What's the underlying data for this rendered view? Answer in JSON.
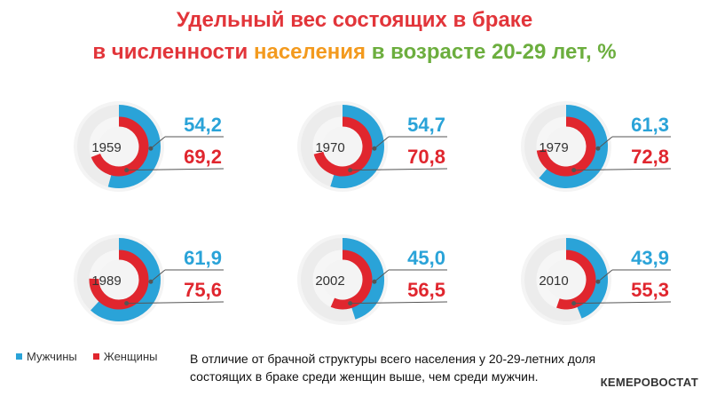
{
  "title": {
    "line1": [
      {
        "text": "Удельный вес состоящих в браке",
        "color": "#e2353a"
      }
    ],
    "line2": [
      {
        "text": "в численности ",
        "color": "#e2353a"
      },
      {
        "text": "населения ",
        "color": "#f39a1e"
      },
      {
        "text": "в возрасте 20-29 лет, %",
        "color": "#6cae3e"
      }
    ]
  },
  "chart_data": [
    {
      "type": "donut",
      "year": "1959",
      "series": [
        {
          "name": "Мужчины",
          "values": [
            54.2
          ]
        },
        {
          "name": "Женщины",
          "values": [
            69.2
          ]
        }
      ]
    },
    {
      "type": "donut",
      "year": "1970",
      "series": [
        {
          "name": "Мужчины",
          "values": [
            54.7
          ]
        },
        {
          "name": "Женщины",
          "values": [
            70.8
          ]
        }
      ]
    },
    {
      "type": "donut",
      "year": "1979",
      "series": [
        {
          "name": "Мужчины",
          "values": [
            61.3
          ]
        },
        {
          "name": "Женщины",
          "values": [
            72.8
          ]
        }
      ]
    },
    {
      "type": "donut",
      "year": "1989",
      "series": [
        {
          "name": "Мужчины",
          "values": [
            61.9
          ]
        },
        {
          "name": "Женщины",
          "values": [
            75.6
          ]
        }
      ]
    },
    {
      "type": "donut",
      "year": "2002",
      "series": [
        {
          "name": "Мужчины",
          "values": [
            45.0
          ]
        },
        {
          "name": "Женщины",
          "values": [
            56.5
          ]
        }
      ]
    },
    {
      "type": "donut",
      "year": "2010",
      "series": [
        {
          "name": "Мужчины",
          "values": [
            43.9
          ]
        },
        {
          "name": "Женщины",
          "values": [
            55.3
          ]
        }
      ]
    }
  ],
  "labels": {
    "1959": {
      "men": "54,2",
      "women": "69,2"
    },
    "1970": {
      "men": "54,7",
      "women": "70,8"
    },
    "1979": {
      "men": "61,3",
      "women": "72,8"
    },
    "1989": {
      "men": "61,9",
      "women": "75,6"
    },
    "2002": {
      "men": "45,0",
      "women": "56,5"
    },
    "2010": {
      "men": "43,9",
      "women": "55,3"
    }
  },
  "colors": {
    "men": "#2aa3d8",
    "women": "#e0262e",
    "track": "#ececec",
    "leader": "#555555"
  },
  "legend": {
    "men": "Мужчины",
    "women": "Женщины"
  },
  "note": "В отличие от брачной структуры всего населения у 20-29-летних доля состоящих в браке среди женщин выше, чем среди мужчин.",
  "brand": "КЕМЕРОВОСТАТ"
}
